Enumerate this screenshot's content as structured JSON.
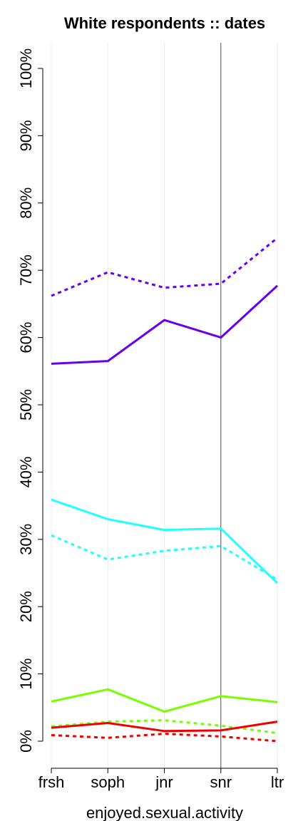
{
  "chart_data": {
    "type": "line",
    "title": "White respondents :: dates",
    "xlabel": "enjoyed.sexual.activity",
    "ylabel": "",
    "categories": [
      "frsh",
      "soph",
      "jnr",
      "snr",
      "ltr"
    ],
    "y_tick_labels": [
      "0%",
      "10%",
      "20%",
      "30%",
      "40%",
      "50%",
      "60%",
      "70%",
      "80%",
      "90%",
      "100%"
    ],
    "ylim": [
      0,
      100
    ],
    "grid": "vertical",
    "reference_line_category": "snr",
    "series": [
      {
        "color": "#6600ee",
        "style": "dashed",
        "values": [
          66.2,
          69.7,
          67.4,
          68.0,
          74.8
        ]
      },
      {
        "color": "#6600ee",
        "style": "solid",
        "values": [
          56.1,
          56.5,
          62.6,
          60.0,
          67.7
        ]
      },
      {
        "color": "#22ffff",
        "style": "solid",
        "values": [
          35.9,
          33.0,
          31.4,
          31.6,
          23.5
        ]
      },
      {
        "color": "#22ffff",
        "style": "dashed",
        "values": [
          30.6,
          27.0,
          28.3,
          29.0,
          24.0
        ]
      },
      {
        "color": "#77ff00",
        "style": "solid",
        "values": [
          5.9,
          7.7,
          4.4,
          6.7,
          5.8
        ]
      },
      {
        "color": "#77ff00",
        "style": "dashed",
        "values": [
          2.2,
          2.9,
          3.1,
          2.3,
          1.2
        ]
      },
      {
        "color": "#ee0000",
        "style": "solid",
        "values": [
          2.0,
          2.7,
          1.5,
          1.6,
          2.9
        ]
      },
      {
        "color": "#ee0000",
        "style": "dashed",
        "values": [
          0.9,
          0.5,
          1.1,
          0.7,
          0.0
        ]
      }
    ]
  }
}
